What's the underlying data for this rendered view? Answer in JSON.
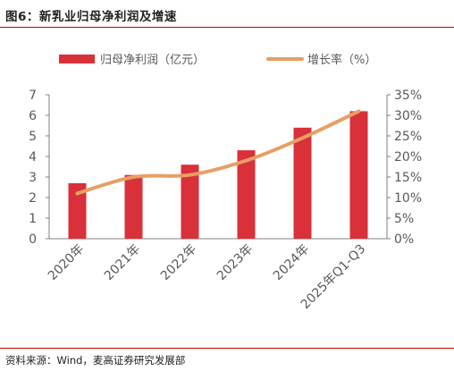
{
  "header": {
    "title": "图6：新乳业归母净利润及增速"
  },
  "footer": {
    "source": "资料来源：Wind，麦高证券研究发展部"
  },
  "chart_data": {
    "type": "bar",
    "categories": [
      "2020年",
      "2021年",
      "2022年",
      "2023年",
      "2024年",
      "2025年Q1-Q3"
    ],
    "series": [
      {
        "name": "归母净利润（亿元）",
        "type": "bar",
        "axis": "left",
        "color": "#d9303a",
        "values": [
          2.7,
          3.1,
          3.6,
          4.3,
          5.4,
          6.2
        ]
      },
      {
        "name": "增长率（%）",
        "type": "line",
        "axis": "right",
        "color": "#e5a064",
        "values": [
          11,
          15,
          15.5,
          19,
          24.5,
          31
        ]
      }
    ],
    "left_axis": {
      "ylim": [
        0,
        7
      ],
      "ticks": [
        "0",
        "1",
        "2",
        "3",
        "4",
        "5",
        "6",
        "7"
      ]
    },
    "right_axis": {
      "ylim": [
        0,
        35
      ],
      "ticks": [
        "0%",
        "5%",
        "10%",
        "15%",
        "20%",
        "25%",
        "30%",
        "35%"
      ]
    },
    "legend": {
      "placement": "top"
    },
    "grid": false
  }
}
